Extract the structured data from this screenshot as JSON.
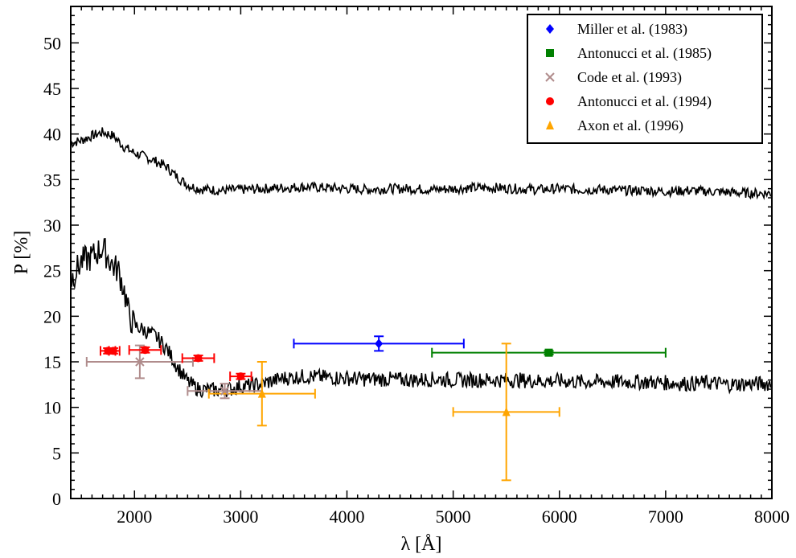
{
  "chart_data": {
    "type": "scatter",
    "title": "",
    "xlabel": "λ [Å]",
    "ylabel": "P [%]",
    "xlim": [
      1400,
      8000
    ],
    "ylim": [
      0,
      54
    ],
    "x_ticks": [
      2000,
      3000,
      4000,
      5000,
      6000,
      7000,
      8000
    ],
    "y_ticks": [
      0,
      5,
      10,
      15,
      20,
      25,
      30,
      35,
      40,
      45,
      50
    ],
    "grid": false,
    "legend_position": "top-right",
    "legend": [
      {
        "label": "Miller et al. (1983)",
        "color": "#0000ff",
        "marker": "diamond"
      },
      {
        "label": "Antonucci et al. (1985)",
        "color": "#008000",
        "marker": "square"
      },
      {
        "label": "Code et al. (1993)",
        "color": "#b08c8c",
        "marker": "x"
      },
      {
        "label": "Antonucci et al. (1994)",
        "color": "#ff0000",
        "marker": "circle"
      },
      {
        "label": "Axon et al. (1996)",
        "color": "#ffa500",
        "marker": "triangle"
      }
    ],
    "lines": [
      {
        "color": "#000000",
        "points": [
          [
            1400,
            39.0
          ],
          [
            1500,
            39.3
          ],
          [
            1600,
            39.8
          ],
          [
            1700,
            40.2
          ],
          [
            1800,
            39.8
          ],
          [
            1900,
            38.6
          ],
          [
            2000,
            37.9
          ],
          [
            2100,
            37.5
          ],
          [
            2200,
            37.0
          ],
          [
            2300,
            36.4
          ],
          [
            2400,
            35.3
          ],
          [
            2500,
            34.4
          ],
          [
            2600,
            34.0
          ],
          [
            2700,
            33.9
          ],
          [
            2800,
            33.8
          ],
          [
            3000,
            33.9
          ],
          [
            3200,
            34.0
          ],
          [
            3400,
            34.1
          ],
          [
            3600,
            34.2
          ],
          [
            3800,
            34.1
          ],
          [
            4000,
            34.0
          ],
          [
            4200,
            33.9
          ],
          [
            4400,
            34.0
          ],
          [
            4600,
            34.0
          ],
          [
            4800,
            33.9
          ],
          [
            5000,
            34.0
          ],
          [
            5200,
            34.1
          ],
          [
            5400,
            34.1
          ],
          [
            5600,
            34.0
          ],
          [
            5800,
            33.9
          ],
          [
            6000,
            34.0
          ],
          [
            6200,
            33.9
          ],
          [
            6400,
            33.9
          ],
          [
            6600,
            33.8
          ],
          [
            6800,
            33.8
          ],
          [
            7000,
            33.7
          ],
          [
            7200,
            33.8
          ],
          [
            7400,
            33.7
          ],
          [
            7600,
            33.6
          ],
          [
            7800,
            33.5
          ],
          [
            8000,
            33.5
          ]
        ]
      },
      {
        "color": "#000000",
        "points": [
          [
            1400,
            24.0
          ],
          [
            1500,
            26.0
          ],
          [
            1600,
            26.5
          ],
          [
            1700,
            27.5
          ],
          [
            1800,
            25.5
          ],
          [
            1850,
            25.0
          ],
          [
            1900,
            23.0
          ],
          [
            1950,
            20.0
          ],
          [
            2000,
            19.0
          ],
          [
            2100,
            18.4
          ],
          [
            2200,
            17.8
          ],
          [
            2300,
            16.5
          ],
          [
            2400,
            14.5
          ],
          [
            2500,
            12.8
          ],
          [
            2600,
            12.0
          ],
          [
            2700,
            11.9
          ],
          [
            2800,
            11.9
          ],
          [
            2900,
            12.0
          ],
          [
            3000,
            12.3
          ],
          [
            3100,
            12.4
          ],
          [
            3200,
            12.6
          ],
          [
            3300,
            12.9
          ],
          [
            3400,
            13.2
          ],
          [
            3600,
            13.4
          ],
          [
            3800,
            13.3
          ],
          [
            4000,
            13.2
          ],
          [
            4200,
            13.1
          ],
          [
            4400,
            13.1
          ],
          [
            4600,
            13.0
          ],
          [
            4800,
            13.1
          ],
          [
            5000,
            13.0
          ],
          [
            5200,
            13.0
          ],
          [
            5400,
            13.0
          ],
          [
            5600,
            13.0
          ],
          [
            5800,
            12.9
          ],
          [
            6000,
            12.9
          ],
          [
            6200,
            12.8
          ],
          [
            6400,
            12.8
          ],
          [
            6600,
            12.8
          ],
          [
            6800,
            12.8
          ],
          [
            7000,
            12.7
          ],
          [
            7200,
            12.6
          ],
          [
            7400,
            12.7
          ],
          [
            7600,
            12.5
          ],
          [
            7800,
            12.6
          ],
          [
            8000,
            12.6
          ]
        ]
      }
    ],
    "series": [
      {
        "name": "Miller et al. (1983)",
        "marker": "diamond",
        "color": "#0000ff",
        "points": [
          {
            "x": 4300,
            "y": 17.0,
            "xerr": [
              3500,
              5100
            ],
            "yerr": [
              16.2,
              17.8
            ]
          }
        ]
      },
      {
        "name": "Antonucci et al. (1985)",
        "marker": "square",
        "color": "#008000",
        "points": [
          {
            "x": 5900,
            "y": 16.0,
            "xerr": [
              4800,
              7000
            ],
            "yerr": [
              15.8,
              16.2
            ]
          }
        ]
      },
      {
        "name": "Code et al. (1993)",
        "marker": "x",
        "color": "#b08c8c",
        "points": [
          {
            "x": 2050,
            "y": 15.0,
            "xerr": [
              1550,
              2550
            ],
            "yerr": [
              13.2,
              16.8
            ]
          },
          {
            "x": 2850,
            "y": 11.8,
            "xerr": [
              2500,
              3200
            ],
            "yerr": [
              11.0,
              12.6
            ]
          }
        ]
      },
      {
        "name": "Antonucci et al. (1994)",
        "marker": "circle",
        "color": "#ff0000",
        "points": [
          {
            "x": 1750,
            "y": 16.2,
            "xerr": [
              1680,
              1820
            ],
            "yerr": [
              15.9,
              16.5
            ]
          },
          {
            "x": 1800,
            "y": 16.2,
            "xerr": [
              1760,
              1860
            ],
            "yerr": [
              15.9,
              16.5
            ]
          },
          {
            "x": 2100,
            "y": 16.3,
            "xerr": [
              1950,
              2250
            ],
            "yerr": [
              16.0,
              16.6
            ]
          },
          {
            "x": 2600,
            "y": 15.4,
            "xerr": [
              2450,
              2750
            ],
            "yerr": [
              15.1,
              15.7
            ]
          },
          {
            "x": 3000,
            "y": 13.4,
            "xerr": [
              2900,
              3100
            ],
            "yerr": [
              13.1,
              13.7
            ]
          }
        ]
      },
      {
        "name": "Axon et al. (1996)",
        "marker": "triangle",
        "color": "#ffa500",
        "points": [
          {
            "x": 3200,
            "y": 11.5,
            "xerr": [
              2700,
              3700
            ],
            "yerr": [
              8.0,
              15.0
            ]
          },
          {
            "x": 5500,
            "y": 9.5,
            "xerr": [
              5000,
              6000
            ],
            "yerr": [
              2.0,
              17.0
            ]
          }
        ]
      }
    ]
  }
}
